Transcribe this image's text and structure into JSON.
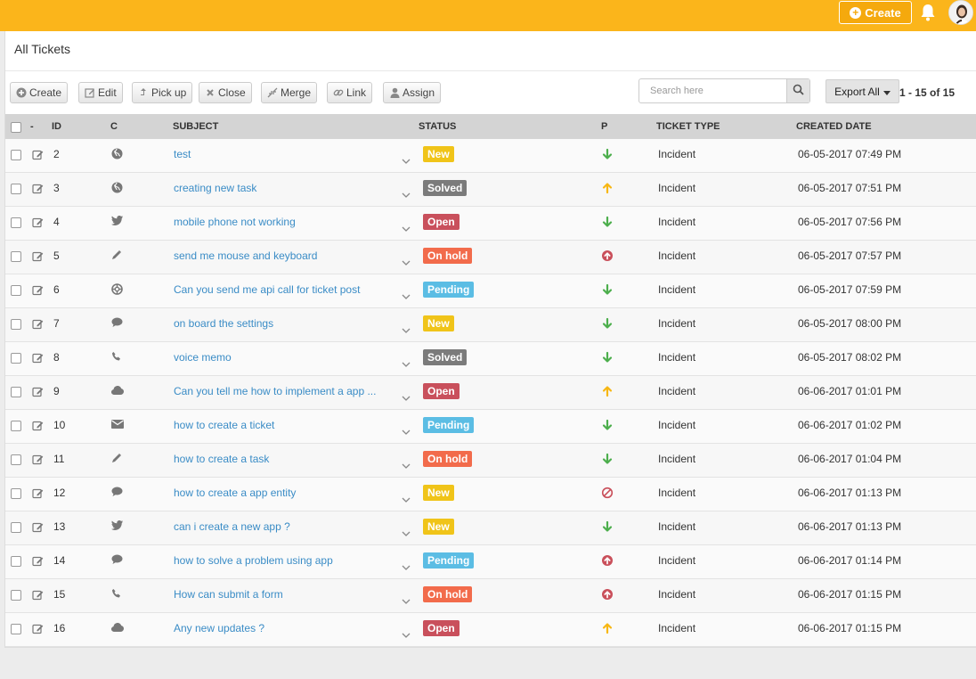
{
  "header": {
    "create_label": "Create",
    "brand_color": "#fbb51b"
  },
  "page": {
    "title": "All Tickets"
  },
  "toolbar": {
    "create": "Create",
    "edit": "Edit",
    "pickup": "Pick up",
    "close": "Close",
    "merge": "Merge",
    "link": "Link",
    "assign": "Assign"
  },
  "search": {
    "placeholder": "Search here"
  },
  "export": {
    "label": "Export All"
  },
  "pager": {
    "text": "1 - 15 of 15"
  },
  "columns": {
    "dash": "-",
    "id": "ID",
    "c": "C",
    "subject": "SUBJECT",
    "status": "STATUS",
    "p": "P",
    "type": "TICKET TYPE",
    "created": "CREATED DATE"
  },
  "status_colors": {
    "New": "#f0c419",
    "Solved": "#7b7b7b",
    "Open": "#c9505c",
    "On hold": "#f26b4b",
    "Pending": "#5bbde4"
  },
  "priority_colors": {
    "low": "#4cae4c",
    "medium": "#f7b713",
    "high": "#c94f5a",
    "none": "#c94f5a"
  },
  "tickets": [
    {
      "id": "2",
      "channel": "globe-icon",
      "subject": "test",
      "status": "New",
      "priority": "low",
      "type": "Incident",
      "created": "06-05-2017 07:49 PM"
    },
    {
      "id": "3",
      "channel": "globe-icon",
      "subject": "creating new task",
      "status": "Solved",
      "priority": "medium",
      "type": "Incident",
      "created": "06-05-2017 07:51 PM"
    },
    {
      "id": "4",
      "channel": "twitter-icon",
      "subject": "mobile phone not working",
      "status": "Open",
      "priority": "low",
      "type": "Incident",
      "created": "06-05-2017 07:56 PM"
    },
    {
      "id": "5",
      "channel": "pencil-icon",
      "subject": "send me mouse and keyboard",
      "status": "On hold",
      "priority": "high",
      "type": "Incident",
      "created": "06-05-2017 07:57 PM"
    },
    {
      "id": "6",
      "channel": "support-icon",
      "subject": "Can you send me api call for ticket post",
      "status": "Pending",
      "priority": "low",
      "type": "Incident",
      "created": "06-05-2017 07:59 PM"
    },
    {
      "id": "7",
      "channel": "chat-icon",
      "subject": "on board the settings",
      "status": "New",
      "priority": "low",
      "type": "Incident",
      "created": "06-05-2017 08:00 PM"
    },
    {
      "id": "8",
      "channel": "phone-icon",
      "subject": "voice memo",
      "status": "Solved",
      "priority": "low",
      "type": "Incident",
      "created": "06-05-2017 08:02 PM"
    },
    {
      "id": "9",
      "channel": "cloud-icon",
      "subject": "Can you tell me how to implement a app ...",
      "status": "Open",
      "priority": "medium",
      "type": "Incident",
      "created": "06-06-2017 01:01 PM"
    },
    {
      "id": "10",
      "channel": "mail-icon",
      "subject": "how to create a ticket",
      "status": "Pending",
      "priority": "low",
      "type": "Incident",
      "created": "06-06-2017 01:02 PM"
    },
    {
      "id": "11",
      "channel": "pencil-icon",
      "subject": "how to create a task",
      "status": "On hold",
      "priority": "low",
      "type": "Incident",
      "created": "06-06-2017 01:04 PM"
    },
    {
      "id": "12",
      "channel": "chat-icon",
      "subject": "how to create a app entity",
      "status": "New",
      "priority": "none",
      "type": "Incident",
      "created": "06-06-2017 01:13 PM"
    },
    {
      "id": "13",
      "channel": "twitter-icon",
      "subject": "can i create a new app ?",
      "status": "New",
      "priority": "low",
      "type": "Incident",
      "created": "06-06-2017 01:13 PM"
    },
    {
      "id": "14",
      "channel": "chat-icon",
      "subject": "how to solve a problem using app",
      "status": "Pending",
      "priority": "high",
      "type": "Incident",
      "created": "06-06-2017 01:14 PM"
    },
    {
      "id": "15",
      "channel": "phone-icon",
      "subject": "How can submit a form",
      "status": "On hold",
      "priority": "high",
      "type": "Incident",
      "created": "06-06-2017 01:15 PM"
    },
    {
      "id": "16",
      "channel": "cloud-icon",
      "subject": "Any new updates ?",
      "status": "Open",
      "priority": "medium",
      "type": "Incident",
      "created": "06-06-2017 01:15 PM"
    }
  ]
}
